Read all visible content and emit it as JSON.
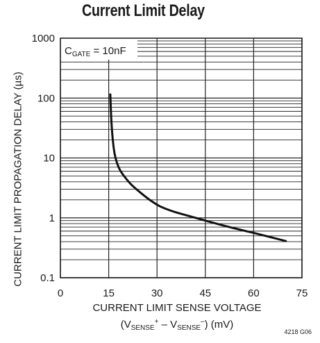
{
  "title": "Current Limit Delay",
  "figure_id": "4218 G06",
  "ylabel": "CURRENT LIMIT PROPAGATION DELAY (µs)",
  "xlabel_line1": "CURRENT LIMIT SENSE VOLTAGE",
  "xlabel_line2": {
    "open": "(V",
    "sense1": "SENSE",
    "plus": "+",
    "minus_sep": " – V",
    "sense2": "SENSE",
    "minus": "–",
    "close": ") (mV)"
  },
  "annotation": {
    "prefix": "C",
    "sub": "GATE",
    "suffix": " = 10nF"
  },
  "chart_data": {
    "type": "line",
    "title": "Current Limit Delay",
    "xlabel": "CURRENT LIMIT SENSE VOLTAGE (VSENSE+ – VSENSE–) (mV)",
    "ylabel": "CURRENT LIMIT PROPAGATION DELAY (µs)",
    "xlim": [
      0,
      75
    ],
    "ylim": [
      0.1,
      1000
    ],
    "yscale": "log",
    "grid": true,
    "x_ticks": [
      0,
      15,
      30,
      45,
      60,
      75
    ],
    "x_tick_labels": [
      "0",
      "15",
      "30",
      "45",
      "60",
      "75"
    ],
    "y_ticks": [
      0.1,
      1,
      10,
      100,
      1000
    ],
    "y_tick_labels": [
      "0.1",
      "1",
      "10",
      "100",
      "1000"
    ],
    "series": [
      {
        "x": [
          15.5,
          15.8,
          16.2,
          16.8,
          17.5,
          18.5,
          20,
          22,
          25,
          28,
          31,
          35,
          40,
          45,
          50,
          55,
          60,
          65,
          70
        ],
        "y": [
          115,
          45,
          22,
          12,
          8.5,
          6.3,
          4.8,
          3.6,
          2.6,
          1.95,
          1.55,
          1.28,
          1.07,
          0.9,
          0.76,
          0.65,
          0.56,
          0.48,
          0.41
        ]
      }
    ]
  }
}
